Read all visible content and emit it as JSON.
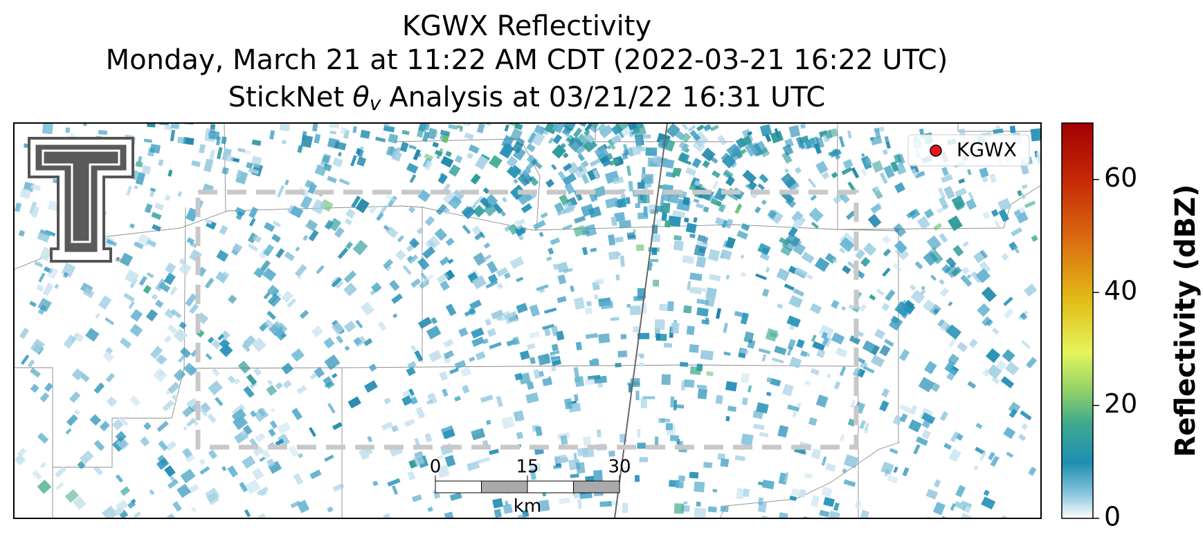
{
  "header": {
    "title_line1": "KGWX Reflectivity",
    "title_line2": "Monday, March 21 at 11:22 AM CDT (2022-03-21 16:22 UTC)",
    "title_line3": {
      "prefix": "StickNet",
      "symbol": "θ",
      "subscript": "v",
      "suffix": "Analysis at 03/21/22 16:31 UTC"
    }
  },
  "legend": {
    "label": "KGWX",
    "color": "#e8141b"
  },
  "scale_bar": {
    "ticks": [
      0,
      15,
      30
    ],
    "unit": "km"
  },
  "colorbar": {
    "label": "Reflectivity (dBZ)",
    "lim": [
      0,
      70
    ],
    "ticks": [
      0,
      20,
      40,
      60
    ]
  }
}
